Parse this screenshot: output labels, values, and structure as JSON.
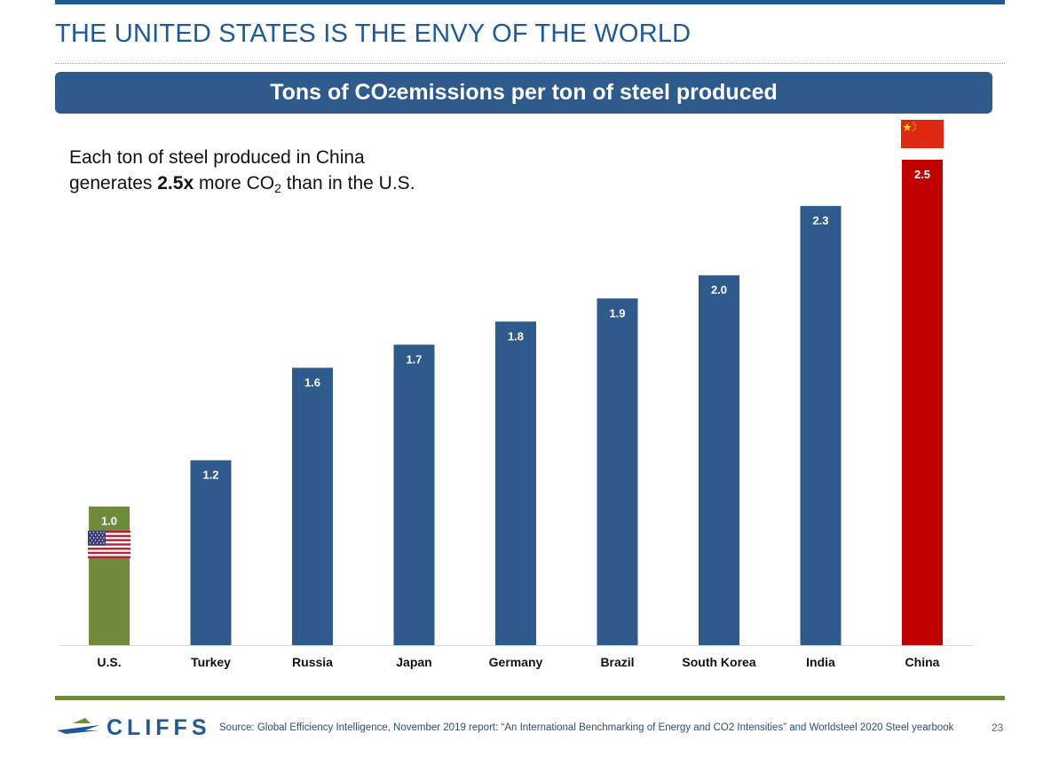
{
  "slide": {
    "title": "THE UNITED STATES IS THE ENVY OF THE WORLD",
    "banner_pre": "Tons of CO",
    "banner_sub": "2",
    "banner_post": " emissions per ton of steel produced",
    "callout_line1": "Each ton of steel produced in China",
    "callout_pre": "generates ",
    "callout_bold": "2.5x",
    "callout_mid": " more CO",
    "callout_sub": "2",
    "callout_post": " than in the U.S.",
    "source": "Source: Global Efficiency Intelligence, November 2019 report: “An International Benchmarking of Energy and CO2 Intensities” and Worldsteel 2020 Steel yearbook",
    "page_number": "23",
    "logo_text": "CLIFFS"
  },
  "chart_data": {
    "type": "bar",
    "title": "Tons of CO2 emissions per ton of steel produced",
    "categories": [
      "U.S.",
      "Turkey",
      "Russia",
      "Japan",
      "Germany",
      "Brazil",
      "South Korea",
      "India",
      "China"
    ],
    "values": [
      1.0,
      1.2,
      1.6,
      1.7,
      1.8,
      1.9,
      2.0,
      2.3,
      2.5
    ],
    "data_labels": [
      "1.0",
      "1.2",
      "1.6",
      "1.7",
      "1.8",
      "1.9",
      "2.0",
      "2.3",
      "2.5"
    ],
    "bar_colors": [
      "#6e8a3b",
      "#2e5b8b",
      "#2e5b8b",
      "#2e5b8b",
      "#2e5b8b",
      "#2e5b8b",
      "#2e5b8b",
      "#2e5b8b",
      "#c00000"
    ],
    "ylim": [
      0.4,
      2.5
    ],
    "grid": false,
    "legend": "none",
    "xlabel": "",
    "ylabel": ""
  },
  "icons": {
    "us_flag": "us-flag-icon",
    "china_flag": "china-flag-icon",
    "logo": "cliffs-logo-icon"
  },
  "colors": {
    "title_blue": "#1f5a96",
    "banner_blue": "#2e5b8b",
    "us_green": "#6e8a3b",
    "china_red": "#c00000"
  }
}
